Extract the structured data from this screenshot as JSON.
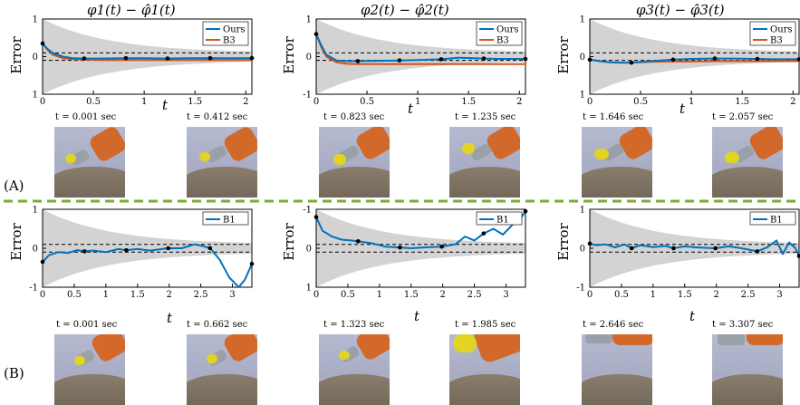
{
  "colors": {
    "ours": "#0072BD",
    "b3": "#D95319",
    "b1": "#0072BD",
    "band": "#D3D3D3",
    "divider": "#77AC30"
  },
  "labels": {
    "row_a": "(A)",
    "row_b": "(B)",
    "ylabel": "Error",
    "xlabel": "t"
  },
  "titles": [
    "φ1(t) − φ̂1(t)",
    "φ2(t) − φ̂2(t)",
    "φ3(t) − φ̂3(t)"
  ],
  "captions_a": [
    [
      "t = 0.001 sec",
      "t = 0.412 sec"
    ],
    [
      "t = 0.823 sec",
      "t = 1.235 sec"
    ],
    [
      "t = 1.646 sec",
      "t = 2.057 sec"
    ]
  ],
  "captions_b": [
    [
      "t = 0.001 sec",
      "t = 0.662 sec"
    ],
    [
      "t = 1.323 sec",
      "t = 1.985 sec"
    ],
    [
      "t = 2.646 sec",
      "t = 3.307 sec"
    ]
  ],
  "chart_data": [
    {
      "type": "line",
      "panel": "A1",
      "xlim": [
        0,
        2.06
      ],
      "ylim": [
        -1,
        1
      ],
      "xticks": [
        "0",
        "0.5",
        "1",
        "1.5",
        "2"
      ],
      "yticks": [
        "1",
        "0",
        "1"
      ],
      "legend": [
        "Ours",
        "B3"
      ],
      "series": [
        {
          "name": "Ours",
          "x": [
            0,
            0.05,
            0.1,
            0.2,
            0.3,
            0.41,
            0.6,
            0.82,
            1.0,
            1.23,
            1.4,
            1.65,
            1.8,
            2.06
          ],
          "y": [
            0.35,
            0.2,
            0.1,
            0.0,
            -0.04,
            -0.05,
            -0.05,
            -0.04,
            -0.04,
            -0.05,
            -0.04,
            -0.04,
            -0.04,
            -0.04
          ]
        },
        {
          "name": "B3",
          "x": [
            0,
            0.05,
            0.1,
            0.2,
            0.3,
            0.41,
            0.6,
            0.82,
            1.0,
            1.23,
            1.4,
            1.65,
            1.8,
            2.06
          ],
          "y": [
            0.35,
            0.18,
            0.05,
            -0.04,
            -0.07,
            -0.08,
            -0.09,
            -0.09,
            -0.09,
            -0.09,
            -0.09,
            -0.09,
            -0.09,
            -0.09
          ]
        }
      ],
      "markers": [
        0,
        0.41,
        0.82,
        1.23,
        1.65,
        2.06
      ]
    },
    {
      "type": "line",
      "panel": "A2",
      "xlim": [
        0,
        2.06
      ],
      "ylim": [
        -1,
        1
      ],
      "xticks": [
        "0",
        "0.5",
        "1",
        "1.5",
        "2"
      ],
      "yticks": [
        "1",
        "0",
        "-1"
      ],
      "legend": [
        "Ours",
        "B3"
      ],
      "series": [
        {
          "name": "Ours",
          "x": [
            0,
            0.05,
            0.1,
            0.2,
            0.3,
            0.41,
            0.6,
            0.82,
            1.0,
            1.23,
            1.4,
            1.65,
            1.8,
            2.06
          ],
          "y": [
            0.6,
            0.3,
            0.05,
            -0.1,
            -0.12,
            -0.12,
            -0.11,
            -0.1,
            -0.09,
            -0.07,
            -0.03,
            -0.05,
            -0.06,
            -0.06
          ]
        },
        {
          "name": "B3",
          "x": [
            0,
            0.05,
            0.1,
            0.2,
            0.3,
            0.41,
            0.6,
            0.82,
            1.0,
            1.23,
            1.4,
            1.65,
            1.8,
            2.06
          ],
          "y": [
            0.6,
            0.25,
            0.0,
            -0.15,
            -0.19,
            -0.2,
            -0.2,
            -0.2,
            -0.2,
            -0.2,
            -0.2,
            -0.2,
            -0.2,
            -0.2
          ]
        }
      ],
      "markers": [
        0,
        0.41,
        0.82,
        1.23,
        1.65,
        2.06
      ]
    },
    {
      "type": "line",
      "panel": "A3",
      "xlim": [
        0,
        2.06
      ],
      "ylim": [
        -1,
        1
      ],
      "xticks": [
        "0",
        "0.5",
        "1",
        "1.5",
        "2"
      ],
      "yticks": [
        "1",
        "0",
        "1"
      ],
      "legend": [
        "Ours",
        "B3"
      ],
      "series": [
        {
          "name": "Ours",
          "x": [
            0,
            0.1,
            0.2,
            0.3,
            0.41,
            0.6,
            0.82,
            1.0,
            1.23,
            1.4,
            1.65,
            1.8,
            2.06
          ],
          "y": [
            -0.08,
            -0.12,
            -0.15,
            -0.16,
            -0.16,
            -0.12,
            -0.08,
            -0.06,
            -0.05,
            -0.05,
            -0.06,
            -0.07,
            -0.07
          ]
        },
        {
          "name": "B3",
          "x": [
            0,
            0.1,
            0.2,
            0.3,
            0.41,
            0.6,
            0.82,
            1.0,
            1.23,
            1.4,
            1.65,
            1.8,
            2.06
          ],
          "y": [
            -0.08,
            -0.12,
            -0.15,
            -0.16,
            -0.16,
            -0.14,
            -0.13,
            -0.13,
            -0.12,
            -0.12,
            -0.12,
            -0.12,
            -0.12
          ]
        }
      ],
      "markers": [
        0,
        0.41,
        0.82,
        1.23,
        1.65,
        2.06
      ]
    },
    {
      "type": "line",
      "panel": "B1",
      "xlim": [
        0,
        3.307
      ],
      "ylim": [
        -1,
        1
      ],
      "xticks": [
        "0",
        "0.5",
        "1",
        "1.5",
        "2",
        "2.5",
        "3"
      ],
      "yticks": [
        "1",
        "0",
        "-1"
      ],
      "legend": [
        "B1"
      ],
      "series": [
        {
          "name": "B1",
          "x": [
            0,
            0.1,
            0.25,
            0.4,
            0.55,
            0.66,
            0.8,
            1.0,
            1.2,
            1.32,
            1.5,
            1.7,
            1.98,
            2.2,
            2.4,
            2.55,
            2.65,
            2.8,
            2.95,
            3.1,
            3.2,
            3.307
          ],
          "y": [
            -0.35,
            -0.18,
            -0.1,
            -0.12,
            -0.05,
            -0.08,
            -0.06,
            -0.1,
            -0.02,
            -0.05,
            -0.02,
            -0.06,
            0.0,
            0.0,
            0.1,
            0.05,
            0.0,
            -0.3,
            -0.75,
            -1.0,
            -0.8,
            -0.4
          ]
        }
      ],
      "markers": [
        0,
        0.662,
        1.323,
        1.985,
        2.646,
        3.307
      ]
    },
    {
      "type": "line",
      "panel": "B2",
      "xlim": [
        0,
        3.307
      ],
      "ylim": [
        -1,
        1
      ],
      "xticks": [
        "0",
        "0.5",
        "1",
        "1.5",
        "2",
        "2.5",
        "3"
      ],
      "yticks": [
        "-1",
        "0",
        "1"
      ],
      "legend": [
        "B1"
      ],
      "series": [
        {
          "name": "B1",
          "x": [
            0,
            0.1,
            0.25,
            0.4,
            0.55,
            0.66,
            0.9,
            1.1,
            1.32,
            1.5,
            1.7,
            1.98,
            2.2,
            2.35,
            2.5,
            2.646,
            2.8,
            2.95,
            3.1,
            3.2,
            3.307
          ],
          "y": [
            0.8,
            0.45,
            0.3,
            0.22,
            0.2,
            0.18,
            0.12,
            0.04,
            0.02,
            0.0,
            0.02,
            0.04,
            0.1,
            0.3,
            0.2,
            0.38,
            0.5,
            0.35,
            0.6,
            0.7,
            0.95
          ]
        }
      ],
      "markers": [
        0,
        0.662,
        1.323,
        1.985,
        2.646,
        3.307
      ]
    },
    {
      "type": "line",
      "panel": "B3",
      "xlim": [
        0,
        3.307
      ],
      "ylim": [
        -1,
        1
      ],
      "xticks": [
        "0",
        "0.5",
        "1",
        "1.5",
        "2",
        "2.5",
        "3"
      ],
      "yticks": [
        "1",
        "0",
        "-1"
      ],
      "legend": [
        "B1"
      ],
      "series": [
        {
          "name": "B1",
          "x": [
            0,
            0.1,
            0.25,
            0.4,
            0.55,
            0.66,
            0.8,
            1.0,
            1.2,
            1.32,
            1.5,
            1.7,
            1.98,
            2.2,
            2.4,
            2.646,
            2.8,
            2.95,
            3.05,
            3.15,
            3.25,
            3.307
          ],
          "y": [
            0.12,
            0.08,
            0.1,
            0.02,
            0.1,
            0.0,
            0.08,
            0.03,
            0.06,
            0.0,
            0.05,
            0.02,
            0.0,
            0.05,
            0.0,
            -0.08,
            0.02,
            0.2,
            -0.15,
            0.15,
            0.0,
            -0.2
          ]
        }
      ],
      "markers": [
        0,
        0.662,
        1.323,
        1.985,
        2.646,
        3.307
      ]
    }
  ]
}
